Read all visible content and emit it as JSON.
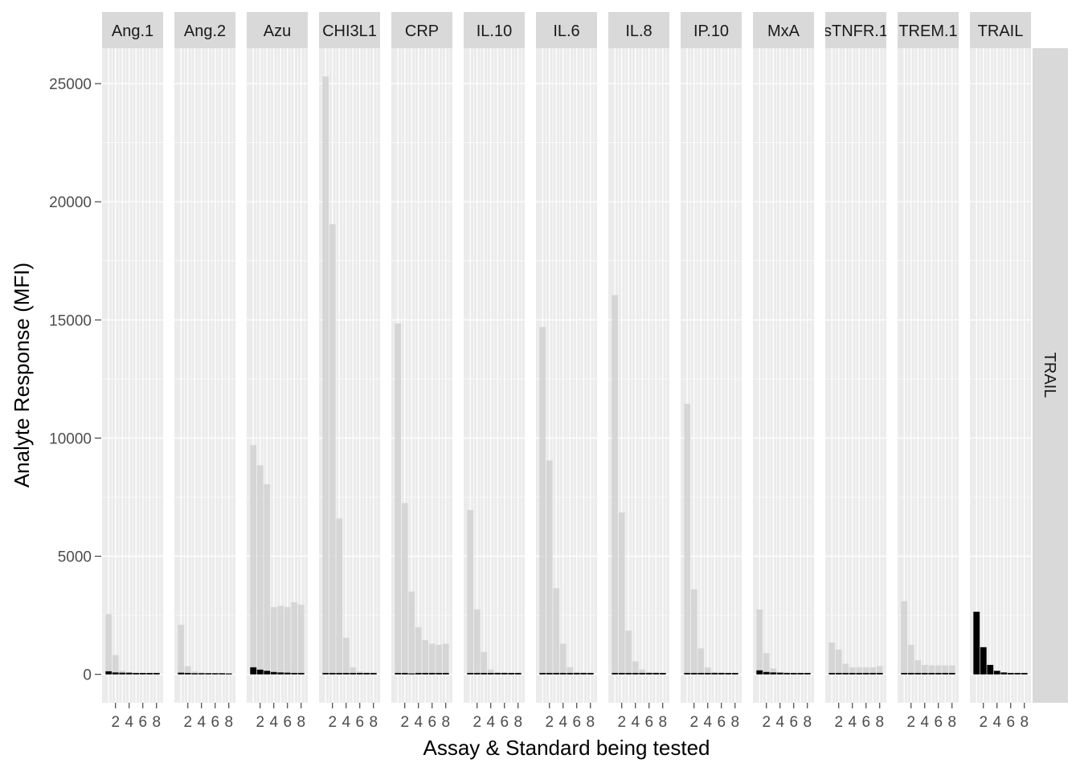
{
  "chart_data": {
    "type": "bar",
    "facet_layout": "columns by assay, single row strip on right",
    "xlabel": "Assay & Standard being tested",
    "ylabel": "Analyte Response (MFI)",
    "ylim": [
      -1200,
      26500
    ],
    "yticks": [
      0,
      5000,
      10000,
      15000,
      20000,
      25000
    ],
    "x_categories": [
      1,
      2,
      3,
      4,
      5,
      6,
      7,
      8
    ],
    "xticks": [
      2,
      4,
      6,
      8
    ],
    "grid": true,
    "row_strip": "TRAIL",
    "colors": {
      "panel_bg": "#ebebeb",
      "grid": "#ffffff",
      "strip_bg": "#d9d9d9",
      "tested_bar": "#000000",
      "other_bar": "#d3d3d3"
    },
    "facets": [
      {
        "name": "Ang.1",
        "background": [
          2550,
          820,
          150,
          80,
          60,
          50,
          40,
          40
        ],
        "tested": [
          130,
          80,
          70,
          70,
          60,
          60,
          60,
          60
        ]
      },
      {
        "name": "Ang.2",
        "background": [
          2100,
          350,
          120,
          80,
          60,
          50,
          40,
          40
        ],
        "tested": [
          70,
          60,
          50,
          50,
          50,
          50,
          50,
          40
        ]
      },
      {
        "name": "Azu",
        "background": [
          9700,
          8850,
          8050,
          2850,
          2900,
          2850,
          3050,
          2950
        ],
        "tested": [
          300,
          200,
          150,
          100,
          80,
          70,
          60,
          60
        ]
      },
      {
        "name": "CHI3L1",
        "background": [
          25300,
          19050,
          6600,
          1550,
          300,
          120,
          80,
          60
        ],
        "tested": [
          60,
          60,
          60,
          60,
          60,
          60,
          60,
          60
        ]
      },
      {
        "name": "CRP",
        "background": [
          14850,
          7250,
          3500,
          2000,
          1450,
          1300,
          1250,
          1300
        ],
        "tested": [
          60,
          60,
          40,
          60,
          60,
          60,
          60,
          60
        ]
      },
      {
        "name": "IL.10",
        "background": [
          6950,
          2750,
          950,
          200,
          100,
          80,
          60,
          60
        ],
        "tested": [
          60,
          60,
          60,
          60,
          60,
          60,
          60,
          60
        ]
      },
      {
        "name": "IL.6",
        "background": [
          14700,
          9050,
          3650,
          1300,
          300,
          100,
          80,
          60
        ],
        "tested": [
          60,
          60,
          60,
          60,
          60,
          60,
          60,
          60
        ]
      },
      {
        "name": "IL.8",
        "background": [
          16050,
          6850,
          1850,
          550,
          200,
          100,
          80,
          60
        ],
        "tested": [
          60,
          60,
          60,
          60,
          60,
          60,
          60,
          60
        ]
      },
      {
        "name": "IP.10",
        "background": [
          11450,
          3600,
          1100,
          300,
          100,
          80,
          60,
          60
        ],
        "tested": [
          60,
          60,
          60,
          60,
          60,
          60,
          60,
          60
        ]
      },
      {
        "name": "MxA",
        "background": [
          2750,
          900,
          250,
          100,
          80,
          60,
          60,
          60
        ],
        "tested": [
          170,
          100,
          80,
          70,
          60,
          60,
          60,
          60
        ]
      },
      {
        "name": "sTNFR.1",
        "background": [
          1350,
          1050,
          450,
          300,
          300,
          300,
          300,
          350
        ],
        "tested": [
          60,
          60,
          60,
          60,
          60,
          60,
          60,
          60
        ]
      },
      {
        "name": "TREM.1",
        "background": [
          3100,
          1250,
          600,
          400,
          380,
          380,
          380,
          380
        ],
        "tested": [
          60,
          60,
          60,
          60,
          60,
          60,
          60,
          60
        ]
      },
      {
        "name": "TRAIL",
        "background": [
          2650,
          1150,
          400,
          150,
          80,
          60,
          60,
          60
        ],
        "tested": [
          2650,
          1150,
          400,
          150,
          80,
          60,
          60,
          60
        ]
      }
    ]
  }
}
